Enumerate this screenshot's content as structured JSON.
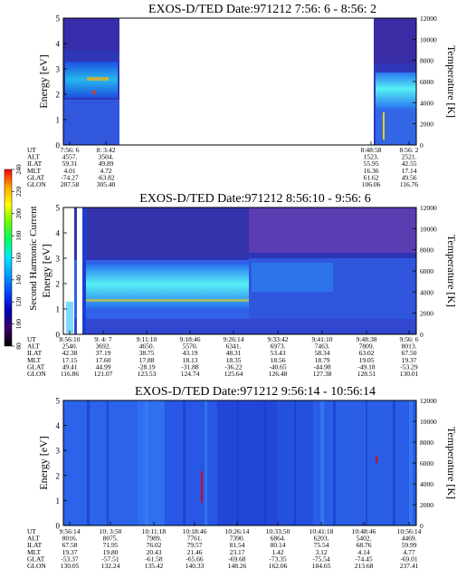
{
  "chart_data": [
    {
      "type": "heatmap",
      "title": "EXOS-D/TED   Date:971212  7:56: 6 - 8:56: 2",
      "ylabel": "Energy [eV]",
      "y2label": "Temperature [K]",
      "ylim": [
        0,
        5
      ],
      "y2lim": [
        0,
        12000
      ],
      "yticks": [
        "0",
        "1",
        "2",
        "3",
        "4",
        "5"
      ],
      "y2ticks": [
        "0",
        "2000",
        "4000",
        "6000",
        "8000",
        "10000",
        "12000"
      ],
      "orbit_rows": [
        {
          "label": "UT",
          "values": [
            "7:56: 6",
            "8: 3:42",
            "8:48:58",
            "8:56: 2"
          ]
        },
        {
          "label": "ALT",
          "values": [
            "4557.",
            "3504.",
            "1523.",
            "2521."
          ]
        },
        {
          "label": "ILAT",
          "values": [
            "59.31",
            "49.89",
            "55.95",
            "42.55"
          ]
        },
        {
          "label": "MLT",
          "values": [
            "4.01",
            "4.72",
            "16.36",
            "17.14"
          ]
        },
        {
          "label": "GLAT",
          "values": [
            "-74.27",
            "-63.82",
            "61.62",
            "49.56"
          ]
        },
        {
          "label": "GLON",
          "values": [
            "287.58",
            "305.40",
            "106.06",
            "116.76"
          ]
        }
      ]
    },
    {
      "type": "heatmap",
      "title": "EXOS-D/TED   Date:971212  8:56:10 - 9:56: 6",
      "ylabel": "Energy [eV]",
      "y2label": "Temperature [K]",
      "ylim": [
        0,
        5
      ],
      "y2lim": [
        0,
        12000
      ],
      "yticks": [
        "0",
        "1",
        "2",
        "3",
        "4",
        "5"
      ],
      "y2ticks": [
        "0",
        "2000",
        "4000",
        "6000",
        "8000",
        "10000",
        "12000"
      ],
      "orbit_rows": [
        {
          "label": "UT",
          "values": [
            "8:56:10",
            "9: 4: 7",
            "9:11:10",
            "9:18:46",
            "9:26:14",
            "9:33:42",
            "9:41:10",
            "9:48:38",
            "9:56: 6"
          ]
        },
        {
          "label": "ALT",
          "values": [
            "2540.",
            "3692.",
            "4650.",
            "5570.",
            "6341.",
            "6973.",
            "7463.",
            "7809.",
            "8013."
          ]
        },
        {
          "label": "ILAT",
          "values": [
            "42.38",
            "37.19",
            "38.75",
            "43.19",
            "48.31",
            "53.43",
            "58.34",
            "63.02",
            "67.50"
          ]
        },
        {
          "label": "MLT",
          "values": [
            "17.15",
            "17.60",
            "17.88",
            "18.13",
            "18.35",
            "18.56",
            "18.79",
            "19.05",
            "19.37"
          ]
        },
        {
          "label": "GLAT",
          "values": [
            "49.41",
            "44.99",
            "-28.19",
            "-31.88",
            "-36.22",
            "-40.65",
            "-44.98",
            "-49.18",
            "-53.29"
          ]
        },
        {
          "label": "GLON",
          "values": [
            "116.86",
            "121.07",
            "123.53",
            "124.74",
            "125.64",
            "126.48",
            "127.38",
            "128.51",
            "130.01"
          ]
        }
      ]
    },
    {
      "type": "heatmap",
      "title": "EXOS-D/TED   Date:971212  9:56:14 - 10:56:14",
      "ylabel": "Energy [eV]",
      "y2label": "Temperature [K]",
      "ylim": [
        0,
        5
      ],
      "y2lim": [
        0,
        12000
      ],
      "yticks": [
        "0",
        "1",
        "2",
        "3",
        "4",
        "5"
      ],
      "y2ticks": [
        "0",
        "2000",
        "4000",
        "6000",
        "8000",
        "10000",
        "12000"
      ],
      "orbit_rows": [
        {
          "label": "UT",
          "values": [
            "9:56:14",
            "10: 3:50",
            "10:11:18",
            "10:18:46",
            "10:26:14",
            "10:33:50",
            "10:41:18",
            "10:48:46",
            "10:56:14"
          ]
        },
        {
          "label": "ALT",
          "values": [
            "8016.",
            "8075.",
            "7989.",
            "7761.",
            "7390.",
            "6864.",
            "6203.",
            "5402.",
            "4469."
          ]
        },
        {
          "label": "ILAT",
          "values": [
            "67.58",
            "71.95",
            "76.02",
            "79.57",
            "81.54",
            "80.14",
            "75.54",
            "68.76",
            "59.99"
          ]
        },
        {
          "label": "MLT",
          "values": [
            "19.37",
            "19.80",
            "20.43",
            "21.46",
            "23.17",
            "1.42",
            "3.12",
            "4.14",
            "4.77"
          ]
        },
        {
          "label": "GLAT",
          "values": [
            "-53.37",
            "-57.51",
            "-61.58",
            "-65.66",
            "-69.68",
            "-73.35",
            "-75.54",
            "-74.45",
            "-69.01"
          ]
        },
        {
          "label": "GLON",
          "values": [
            "130.05",
            "132.24",
            "135.42",
            "140.33",
            "148.26",
            "162.06",
            "184.65",
            "213.68",
            "237.41"
          ]
        }
      ]
    }
  ],
  "colorbar": {
    "label": "Second Harmonic Current",
    "ticks": [
      "80",
      "100",
      "120",
      "140",
      "160",
      "180",
      "200",
      "220",
      "240"
    ],
    "colors": [
      "#000000",
      "#3d0066",
      "#0000b4",
      "#0044ff",
      "#0099ff",
      "#00e5ff",
      "#00ff66",
      "#66ff00",
      "#ffff00",
      "#ffaa00",
      "#ff0000"
    ]
  },
  "palette": {
    "deep_blue": "#1a44d4",
    "mid_blue": "#2a6ef2",
    "band_cyan": "#33d6f2",
    "purple": "#5c3ab8",
    "gap_white": "#ffffff"
  }
}
